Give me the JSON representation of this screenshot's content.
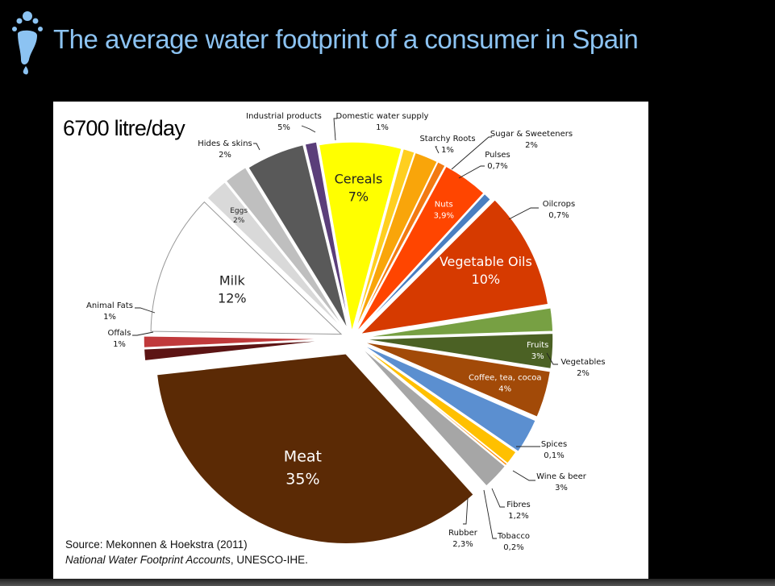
{
  "slide": {
    "title": "The average water footprint of a consumer in Spain"
  },
  "panel": {
    "total": "6700 litre/day",
    "source_line1": "Source: Mekonnen & Hoekstra (2011)",
    "source_line2_italic": "National Water Footprint  Accounts",
    "source_line2_rest": ", UNESCO-IHE."
  },
  "chart_data": {
    "type": "pie",
    "title": "6700 litre/day",
    "unit": "%",
    "slices": [
      {
        "name": "Cereals",
        "value": 7,
        "label": "7%",
        "color": "#ffff00"
      },
      {
        "name": "Starchy Roots",
        "value": 1,
        "label": "1%",
        "color": "#ffcf1f"
      },
      {
        "name": "Sugar & Sweeteners",
        "value": 2,
        "label": "2%",
        "color": "#f9a50a"
      },
      {
        "name": "Pulses",
        "value": 0.7,
        "label": "0,7%",
        "color": "#f27a12"
      },
      {
        "name": "Nuts",
        "value": 3.9,
        "label": "3,9%",
        "color": "#ff4500"
      },
      {
        "name": "Oilcrops",
        "value": 0.7,
        "label": "0,7%",
        "color": "#4a7fc1"
      },
      {
        "name": "Vegetable Oils",
        "value": 10,
        "label": "10%",
        "color": "#d63a00"
      },
      {
        "name": "Vegetables",
        "value": 2,
        "label": "2%",
        "color": "#77a043"
      },
      {
        "name": "Fruits",
        "value": 3,
        "label": "3%",
        "color": "#4b6124"
      },
      {
        "name": "Coffee, tea, cocoa",
        "value": 4,
        "label": "4%",
        "color": "#a24a08"
      },
      {
        "name": "Spices",
        "value": 0.1,
        "label": "0,1%",
        "color": "#e85a1e"
      },
      {
        "name": "Wine & beer",
        "value": 3,
        "label": "3%",
        "color": "#5b8fd0"
      },
      {
        "name": "Fibres",
        "value": 1.2,
        "label": "1,2%",
        "color": "#ffc000"
      },
      {
        "name": "Tobacco",
        "value": 0.2,
        "label": "0,2%",
        "color": "#ff8c00"
      },
      {
        "name": "Rubber",
        "value": 2.3,
        "label": "2,3%",
        "color": "#a6a6a6"
      },
      {
        "name": "Meat",
        "value": 35,
        "label": "35%",
        "color": "#5b2a05"
      },
      {
        "name": "Offals",
        "value": 1,
        "label": "1%",
        "color": "#5c1414"
      },
      {
        "name": "Animal Fats",
        "value": 1,
        "label": "1%",
        "color": "#c0393b"
      },
      {
        "name": "Milk",
        "value": 12,
        "label": "12%",
        "color": "#ffffff"
      },
      {
        "name": "Eggs",
        "value": 2,
        "label": "2%",
        "color": "#d9d9d9"
      },
      {
        "name": "Hides & skins",
        "value": 2,
        "label": "2%",
        "color": "#bfbfbf"
      },
      {
        "name": "Industrial products",
        "value": 5,
        "label": "5%",
        "color": "#595959"
      },
      {
        "name": "Domestic water supply",
        "value": 1,
        "label": "1%",
        "color": "#5b3e7a"
      }
    ]
  }
}
